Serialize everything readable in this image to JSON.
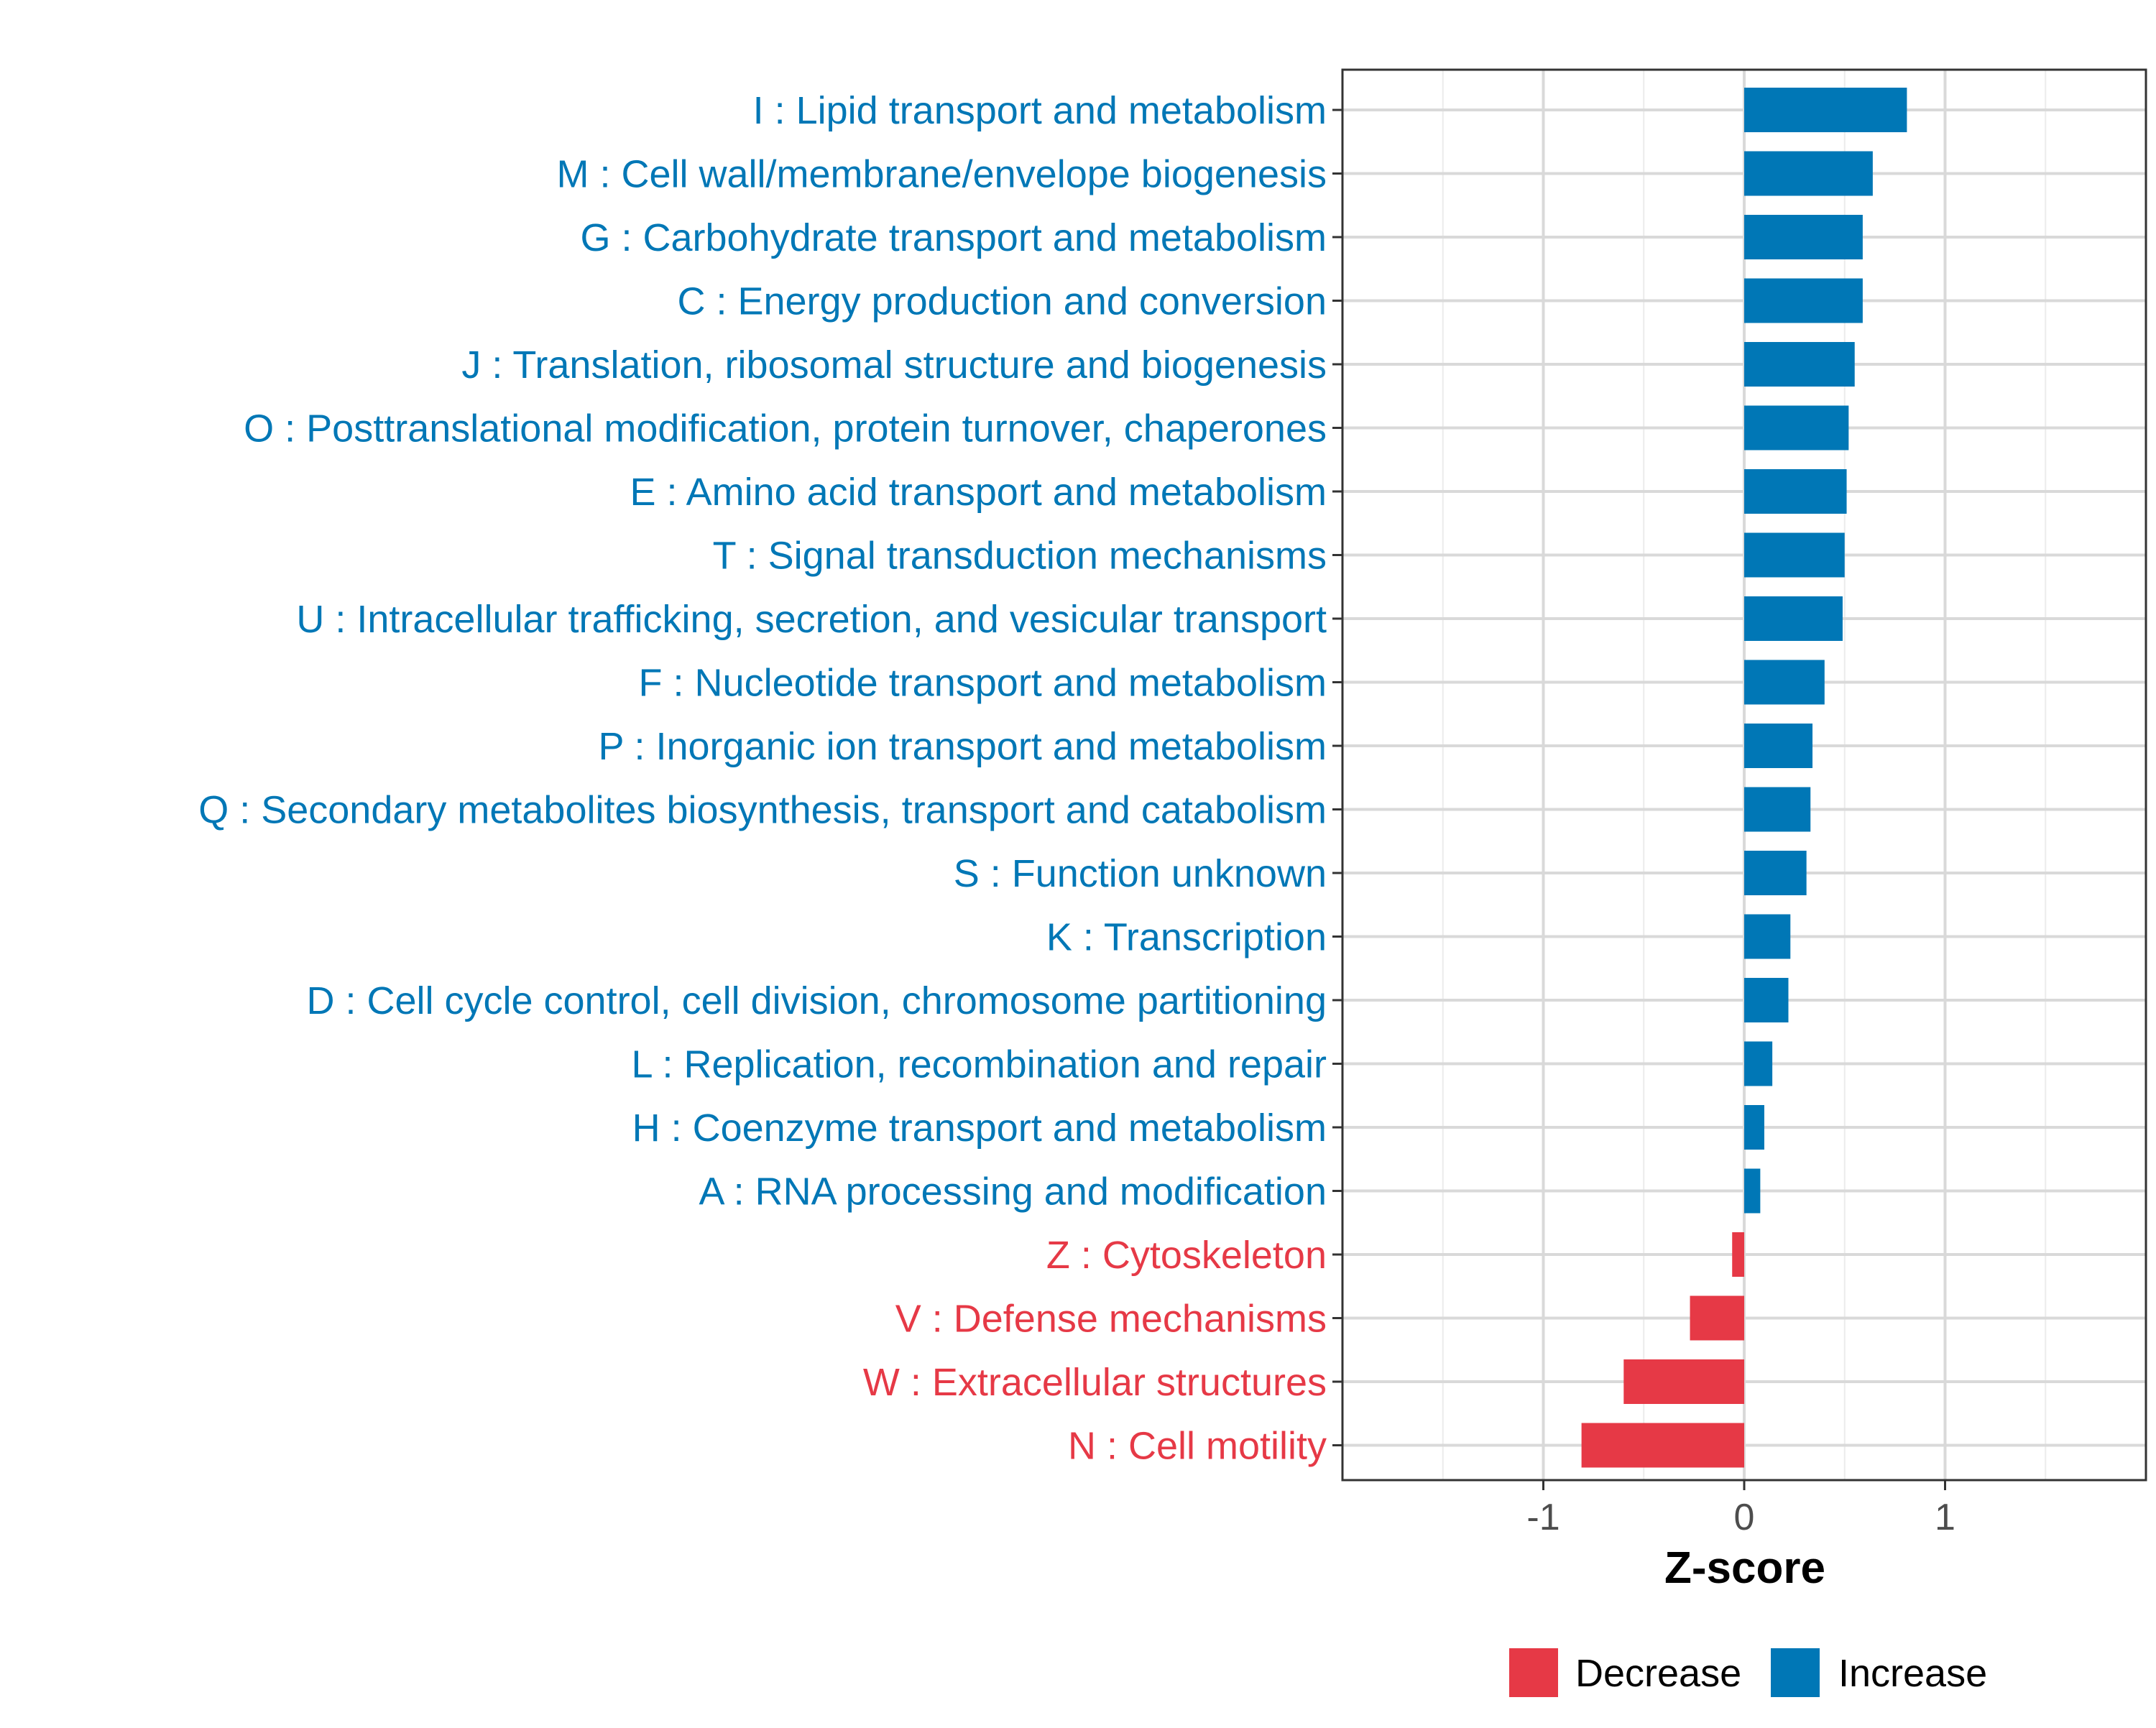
{
  "chart_data": {
    "type": "bar",
    "orientation": "horizontal",
    "title": "",
    "xlabel": "Z-score",
    "ylabel": "",
    "xlim": [
      -2.0,
      2.0
    ],
    "xticks": [
      -1,
      0,
      1
    ],
    "xtick_labels": [
      "-1",
      "0",
      "1"
    ],
    "grid": true,
    "legend_position": "bottom",
    "colors": {
      "Decrease": "#E63946",
      "Increase": "#0077B6"
    },
    "legend": [
      {
        "label": "Decrease",
        "color": "#E63946"
      },
      {
        "label": "Increase",
        "color": "#0077B6"
      }
    ],
    "categories": [
      "I : Lipid transport and metabolism",
      "M : Cell wall/membrane/envelope biogenesis",
      "G : Carbohydrate transport and metabolism",
      "C : Energy production and conversion",
      "J : Translation, ribosomal structure and biogenesis",
      "O : Posttranslational modification, protein turnover, chaperones",
      "E : Amino acid transport and metabolism",
      "T : Signal transduction mechanisms",
      "U : Intracellular trafficking, secretion, and vesicular transport",
      "F : Nucleotide transport and metabolism",
      "P : Inorganic ion transport and metabolism",
      "Q : Secondary metabolites biosynthesis, transport and catabolism",
      "S : Function unknown",
      "K : Transcription",
      "D : Cell cycle control, cell division, chromosome partitioning",
      "L : Replication, recombination and repair",
      "H : Coenzyme transport and metabolism",
      "A : RNA processing and modification",
      "Z : Cytoskeleton",
      "V : Defense mechanisms",
      "W : Extracellular structures",
      "N : Cell motility"
    ],
    "values": [
      0.81,
      0.64,
      0.59,
      0.59,
      0.55,
      0.52,
      0.51,
      0.5,
      0.49,
      0.4,
      0.34,
      0.33,
      0.31,
      0.23,
      0.22,
      0.14,
      0.1,
      0.08,
      -0.06,
      -0.27,
      -0.6,
      -0.81
    ],
    "groups": [
      "Increase",
      "Increase",
      "Increase",
      "Increase",
      "Increase",
      "Increase",
      "Increase",
      "Increase",
      "Increase",
      "Increase",
      "Increase",
      "Increase",
      "Increase",
      "Increase",
      "Increase",
      "Increase",
      "Increase",
      "Increase",
      "Decrease",
      "Decrease",
      "Decrease",
      "Decrease"
    ]
  }
}
